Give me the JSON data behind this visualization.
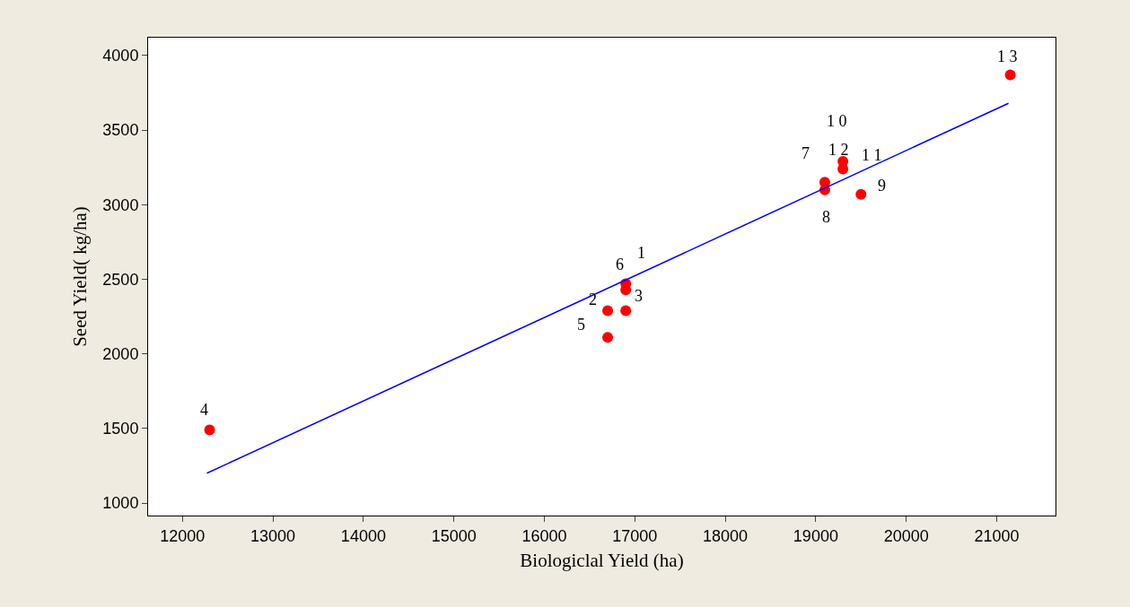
{
  "chart_data": {
    "type": "scatter",
    "xlabel": "Biologiclal Yield (ha)",
    "ylabel": "Seed Yield( kg/ha)",
    "xlim": [
      11620,
      21650
    ],
    "xticks": [
      12000,
      13000,
      14000,
      15000,
      16000,
      17000,
      18000,
      19000,
      20000,
      21000
    ],
    "ylim": [
      916,
      4120
    ],
    "yticks": [
      1000,
      1500,
      2000,
      2500,
      3000,
      3500,
      4000
    ],
    "grid": false,
    "legend": false,
    "marker": "circle",
    "series": [
      {
        "color": "#ff0000",
        "x": [
          16900,
          16700,
          16900,
          12300,
          16700,
          16900,
          19100,
          19100,
          19500,
          19300,
          null,
          19300,
          21150
        ],
        "values": [
          2430,
          2290,
          2290,
          1490,
          2110,
          2470,
          3150,
          3100,
          3070,
          3290,
          null,
          3240,
          3870
        ]
      },
      {
        "type": "line",
        "color": "#0000ff",
        "line_style": "solid",
        "marker": "none",
        "x": [
          12270,
          21130
        ],
        "values": [
          1200,
          3680
        ]
      }
    ],
    "annotations": [
      {
        "text": "1",
        "x": 16900,
        "y": 2430
      },
      {
        "text": "2",
        "x": 16700,
        "y": 2290
      },
      {
        "text": "3",
        "x": 16900,
        "y": 2290
      },
      {
        "text": "4",
        "x": 12300,
        "y": 1490
      },
      {
        "text": "5",
        "x": 16700,
        "y": 2110
      },
      {
        "text": "6",
        "x": 16900,
        "y": 2470
      },
      {
        "text": "7",
        "x": 19100,
        "y": 3150
      },
      {
        "text": "8",
        "x": 19100,
        "y": 3100
      },
      {
        "text": "9",
        "x": 19500,
        "y": 3070
      },
      {
        "text": "1 0",
        "x": 19300,
        "y": 3290
      },
      {
        "text": "1 1",
        "x": 19300,
        "y": 3260
      },
      {
        "text": "1 2",
        "x": 19300,
        "y": 3240
      },
      {
        "text": "1 3",
        "x": 21150,
        "y": 3870
      }
    ]
  }
}
